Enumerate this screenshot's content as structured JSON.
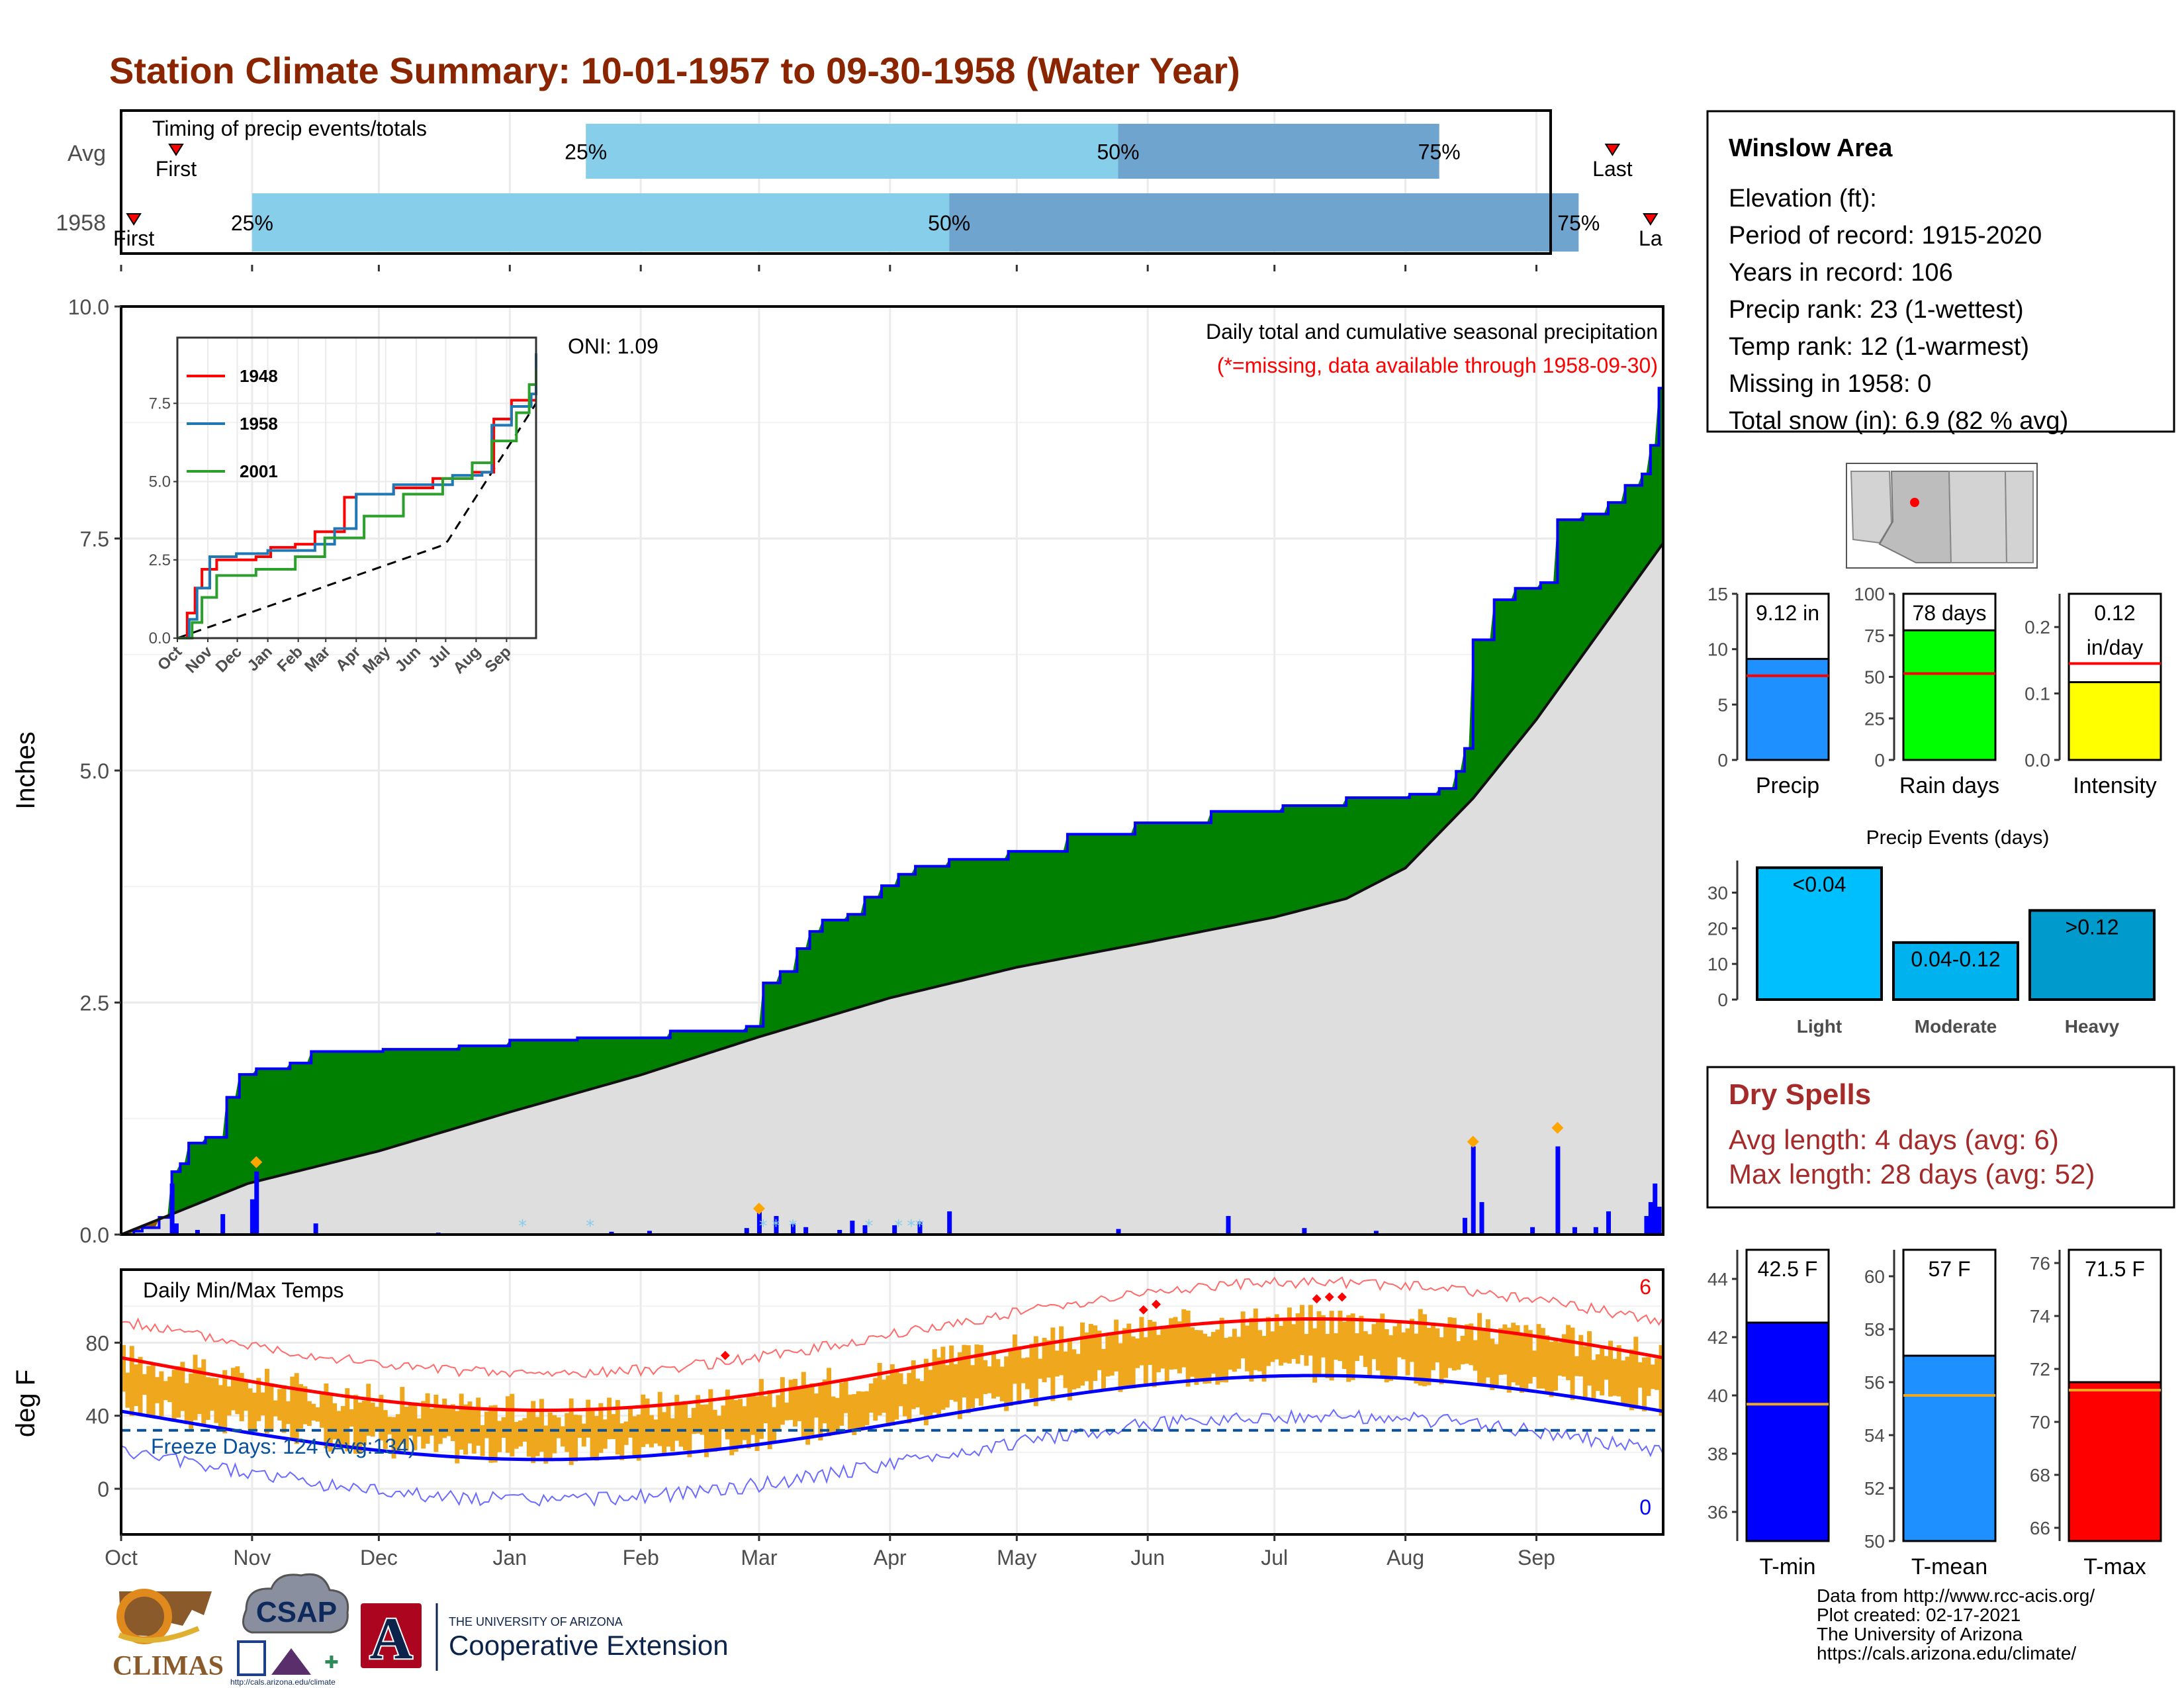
{
  "title": "Station Climate Summary: 10-01-1957 to 09-30-1958 (Water Year)",
  "timing": {
    "panel_title": "Timing of precip events/totals",
    "rows": [
      {
        "label": "Avg",
        "first_label": "First",
        "last_label": "Last",
        "first_day": 13,
        "q25_day": 110,
        "q50_day": 236,
        "q75_day": 312,
        "last_day": 353
      },
      {
        "label": "1958",
        "first_label": "First",
        "last_label": "La",
        "first_day": 3,
        "q25_day": 31,
        "q50_day": 196,
        "q75_day": 345,
        "last_day": 362
      }
    ],
    "pct_labels": [
      "25%",
      "50%",
      "75%"
    ],
    "colors": {
      "q25_50": "#87ceeb",
      "q50_75": "#6fa4ce",
      "marker": "#ff0000"
    }
  },
  "precip": {
    "ylabel": "Inches",
    "y_ticks": [
      "0.0",
      "2.5",
      "5.0",
      "7.5",
      "10.0"
    ],
    "ylim": [
      0,
      10
    ],
    "oni_label": "ONI: 1.09",
    "note1": "Daily total and cumulative seasonal precipitation",
    "note2": "(*=missing, data available through 1958-09-30)",
    "month_labels": [
      "Oct",
      "Nov",
      "Dec",
      "Jan",
      "Feb",
      "Mar",
      "Apr",
      "May",
      "Jun",
      "Jul",
      "Aug",
      "Sep"
    ],
    "colors": {
      "above_avg": "#008000",
      "below_avg": "#8b5a00",
      "avg_area": "#dedede",
      "line": "#0000ff",
      "daily_bar": "#0000ff",
      "snow": "#87ceeb",
      "marker": "#ffa500"
    }
  },
  "inset": {
    "y_ticks": [
      "0.0",
      "2.5",
      "5.0",
      "7.5"
    ],
    "x_ticks": [
      "Oct",
      "Nov",
      "Dec",
      "Jan",
      "Feb",
      "Mar",
      "Apr",
      "May",
      "Jun",
      "Jul",
      "Aug",
      "Sep"
    ],
    "legend": [
      {
        "label": "1948",
        "color": "#ff0000"
      },
      {
        "label": "1958",
        "color": "#1f77b4"
      },
      {
        "label": "2001",
        "color": "#2ca02c"
      }
    ]
  },
  "temps": {
    "ylabel": "deg F",
    "panel_title": "Daily Min/Max Temps",
    "y_ticks": [
      "0",
      "40",
      "80"
    ],
    "freeze_label": "Freeze Days: 124 (Avg:134)",
    "count_max": "6",
    "count_min": "0",
    "month_labels": [
      "Oct",
      "Nov",
      "Dec",
      "Jan",
      "Feb",
      "Mar",
      "Apr",
      "May",
      "Jun",
      "Jul",
      "Aug",
      "Sep"
    ],
    "colors": {
      "range": "#efa81d",
      "max_avg": "#ff0000",
      "min_avg": "#0000ff"
    }
  },
  "station": {
    "name": "Winslow Area",
    "lines": [
      "Elevation (ft):",
      "Period of record: 1915-2020",
      "Years in record: 106",
      "Precip rank: 23 (1-wettest)",
      "Temp rank: 12 (1-warmest)",
      "Missing in 1958: 0",
      "Total snow (in): 6.9 (82 % avg)"
    ]
  },
  "summary_bars": [
    {
      "label": "Precip",
      "value_label": "9.12 in",
      "value": 9.12,
      "avg": 7.6,
      "ylim": [
        0,
        15
      ],
      "ticks": [
        "0",
        "5",
        "10",
        "15"
      ],
      "color": "#1e90ff"
    },
    {
      "label": "Rain days",
      "value_label": "78 days",
      "value": 78,
      "avg": 52,
      "ylim": [
        0,
        100
      ],
      "ticks": [
        "0",
        "25",
        "50",
        "75",
        "100"
      ],
      "color": "#00ff00"
    },
    {
      "label": "Intensity",
      "value_label": "0.12\nin/day",
      "value": 0.117,
      "avg": 0.145,
      "ylim": [
        0,
        0.25
      ],
      "ticks": [
        "0.0",
        "0.1",
        "0.2"
      ],
      "color": "#ffff00"
    }
  ],
  "precip_events": {
    "title": "Precip Events (days)",
    "ticks": [
      "0",
      "10",
      "20",
      "30"
    ],
    "categories": [
      "Light",
      "Moderate",
      "Heavy"
    ],
    "bar_labels": [
      "<0.04",
      "0.04-0.12",
      ">0.12"
    ],
    "values": [
      37,
      16,
      25
    ],
    "colors": [
      "#00bfff",
      "#00b2ee",
      "#009acd"
    ]
  },
  "dry_spells": {
    "title": "Dry Spells",
    "avg": "Avg length: 4 days (avg: 6)",
    "max": "Max length: 28 days (avg: 52)"
  },
  "temp_bars": [
    {
      "label": "T-min",
      "value_label": "42.5 F",
      "value": 42.5,
      "avg": 39.7,
      "ylim": [
        35,
        45
      ],
      "ticks": [
        "36",
        "38",
        "40",
        "42",
        "44"
      ],
      "color": "#0000ff"
    },
    {
      "label": "T-mean",
      "value_label": "57 F",
      "value": 57,
      "avg": 55.5,
      "ylim": [
        50,
        61
      ],
      "ticks": [
        "50",
        "52",
        "54",
        "56",
        "58",
        "60"
      ],
      "color": "#1e90ff"
    },
    {
      "label": "T-max",
      "value_label": "71.5 F",
      "value": 71.5,
      "avg": 71.2,
      "ylim": [
        65.5,
        76.5
      ],
      "ticks": [
        "66",
        "68",
        "70",
        "72",
        "74",
        "76"
      ],
      "color": "#ff0000"
    }
  ],
  "credits": [
    "Data from http://www.rcc-acis.org/",
    "Plot created: 02-17-2021",
    "The University of Arizona",
    "https://cals.arizona.edu/climate/"
  ],
  "logos": {
    "climas": "CLIMAS",
    "csap": "CSAP",
    "csap_url": "http://cals.arizona.edu/climate",
    "ua_top": "THE UNIVERSITY OF ARIZONA",
    "ua_main": "Cooperative Extension"
  }
}
